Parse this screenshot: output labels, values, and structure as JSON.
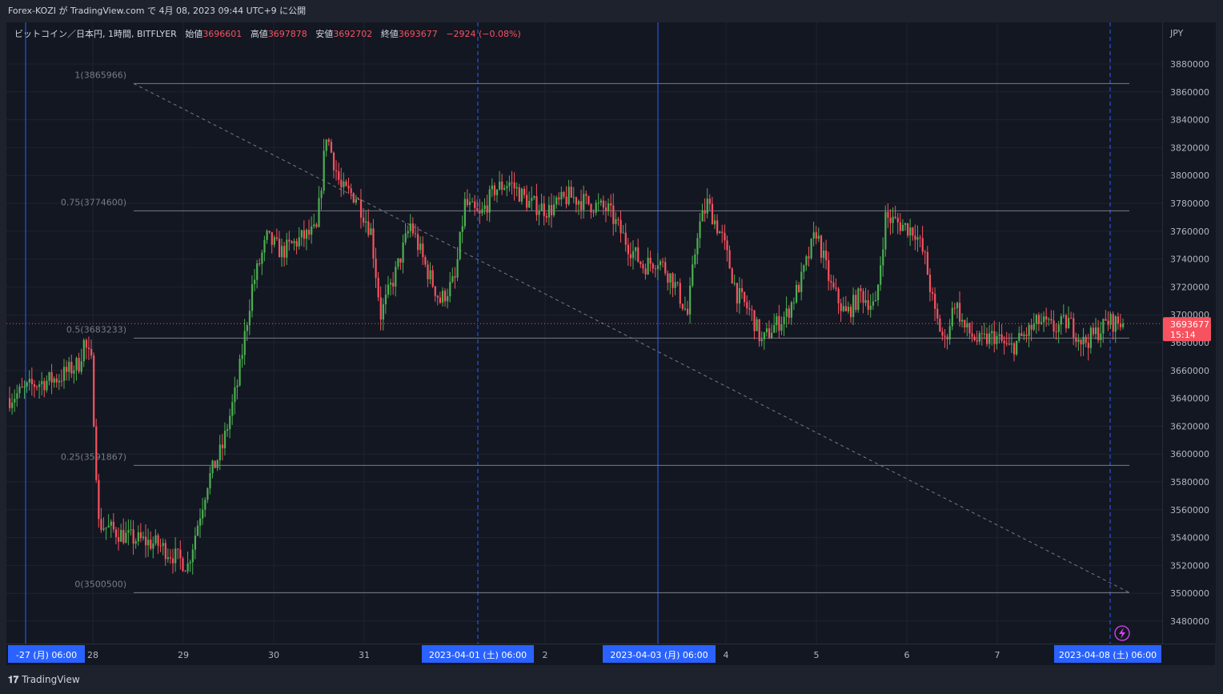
{
  "header": {
    "publish_text": "Forex-KOZI が TradingView.com で 4月 08, 2023 09:44 UTC+9 に公開"
  },
  "legend": {
    "symbol": "ビットコイン／日本円, 1時間, BITFLYER",
    "open_label": "始値",
    "open_value": "3696601",
    "high_label": "高値",
    "high_value": "3697878",
    "low_label": "安値",
    "low_value": "3692702",
    "close_label": "終値",
    "close_value": "3693677",
    "change": "−2924 (−0.08%)"
  },
  "price_axis": {
    "currency": "JPY",
    "ticks": [
      "3880000",
      "3860000",
      "3840000",
      "3820000",
      "3800000",
      "3780000",
      "3760000",
      "3740000",
      "3720000",
      "3700000",
      "3680000",
      "3660000",
      "3640000",
      "3620000",
      "3600000",
      "3580000",
      "3560000",
      "3540000",
      "3520000",
      "3500000",
      "3480000"
    ],
    "last_price": "3693677",
    "countdown": "15:14"
  },
  "time_axis": {
    "labels": [
      "28",
      "29",
      "30",
      "31",
      "2",
      "4",
      "5",
      "6",
      "7"
    ],
    "highlighted": [
      "-27 (月)   06:00",
      "2023-04-01 (土)   06:00",
      "2023-04-03 (月)   06:00",
      "2023-04-08 (土)   06:00"
    ]
  },
  "fib_levels": [
    {
      "label": "1(3865966)",
      "value": 3865966
    },
    {
      "label": "0.75(3774600)",
      "value": 3774600
    },
    {
      "label": "0.5(3683233)",
      "value": 3683233
    },
    {
      "label": "0.25(3591867)",
      "value": 3591867
    },
    {
      "label": "0(3500500)",
      "value": 3500500
    }
  ],
  "footer": {
    "brand": "TradingView"
  },
  "colors": {
    "up": "#26a69a",
    "up_candle": "#4caf50",
    "down": "#f7525f",
    "background": "#131722",
    "grid": "#2a2e39",
    "highlight": "#2962ff"
  },
  "chart_data": {
    "type": "candlestick",
    "title": "ビットコイン／日本円, 1時間, BITFLYER",
    "ylabel": "JPY",
    "ylim": [
      3470000,
      3890000
    ],
    "fibonacci_retracement": {
      "from": 3865966,
      "to": 3500500
    },
    "price_path_anchors": [
      {
        "t": 0,
        "v": 3640000
      },
      {
        "t": 10,
        "v": 3650000
      },
      {
        "t": 20,
        "v": 3655000
      },
      {
        "t": 28,
        "v": 3665000
      },
      {
        "t": 30,
        "v": 3680000
      },
      {
        "t": 33,
        "v": 3665000
      },
      {
        "t": 36,
        "v": 3550000
      },
      {
        "t": 48,
        "v": 3540000
      },
      {
        "t": 60,
        "v": 3535000
      },
      {
        "t": 72,
        "v": 3520000
      },
      {
        "t": 80,
        "v": 3580000
      },
      {
        "t": 86,
        "v": 3605000
      },
      {
        "t": 92,
        "v": 3650000
      },
      {
        "t": 98,
        "v": 3720000
      },
      {
        "t": 104,
        "v": 3755000
      },
      {
        "t": 110,
        "v": 3745000
      },
      {
        "t": 118,
        "v": 3755000
      },
      {
        "t": 124,
        "v": 3760000
      },
      {
        "t": 128,
        "v": 3830000
      },
      {
        "t": 134,
        "v": 3790000
      },
      {
        "t": 140,
        "v": 3785000
      },
      {
        "t": 146,
        "v": 3760000
      },
      {
        "t": 150,
        "v": 3700000
      },
      {
        "t": 156,
        "v": 3730000
      },
      {
        "t": 162,
        "v": 3765000
      },
      {
        "t": 168,
        "v": 3735000
      },
      {
        "t": 174,
        "v": 3710000
      },
      {
        "t": 180,
        "v": 3725000
      },
      {
        "t": 184,
        "v": 3780000
      },
      {
        "t": 190,
        "v": 3770000
      },
      {
        "t": 196,
        "v": 3790000
      },
      {
        "t": 202,
        "v": 3795000
      },
      {
        "t": 210,
        "v": 3780000
      },
      {
        "t": 218,
        "v": 3775000
      },
      {
        "t": 226,
        "v": 3785000
      },
      {
        "t": 234,
        "v": 3780000
      },
      {
        "t": 242,
        "v": 3775000
      },
      {
        "t": 250,
        "v": 3750000
      },
      {
        "t": 256,
        "v": 3735000
      },
      {
        "t": 262,
        "v": 3740000
      },
      {
        "t": 268,
        "v": 3725000
      },
      {
        "t": 274,
        "v": 3700000
      },
      {
        "t": 278,
        "v": 3760000
      },
      {
        "t": 282,
        "v": 3780000
      },
      {
        "t": 288,
        "v": 3755000
      },
      {
        "t": 294,
        "v": 3715000
      },
      {
        "t": 300,
        "v": 3700000
      },
      {
        "t": 304,
        "v": 3680000
      },
      {
        "t": 308,
        "v": 3690000
      },
      {
        "t": 314,
        "v": 3700000
      },
      {
        "t": 320,
        "v": 3725000
      },
      {
        "t": 326,
        "v": 3760000
      },
      {
        "t": 332,
        "v": 3720000
      },
      {
        "t": 338,
        "v": 3700000
      },
      {
        "t": 344,
        "v": 3715000
      },
      {
        "t": 350,
        "v": 3705000
      },
      {
        "t": 354,
        "v": 3770000
      },
      {
        "t": 360,
        "v": 3765000
      },
      {
        "t": 366,
        "v": 3760000
      },
      {
        "t": 370,
        "v": 3740000
      },
      {
        "t": 374,
        "v": 3700000
      },
      {
        "t": 378,
        "v": 3680000
      },
      {
        "t": 382,
        "v": 3710000
      },
      {
        "t": 386,
        "v": 3690000
      },
      {
        "t": 392,
        "v": 3680000
      },
      {
        "t": 398,
        "v": 3685000
      },
      {
        "t": 404,
        "v": 3675000
      },
      {
        "t": 410,
        "v": 3685000
      },
      {
        "t": 416,
        "v": 3695000
      },
      {
        "t": 422,
        "v": 3690000
      },
      {
        "t": 428,
        "v": 3695000
      },
      {
        "t": 434,
        "v": 3680000
      },
      {
        "t": 438,
        "v": 3685000
      },
      {
        "t": 444,
        "v": 3695000
      },
      {
        "t": 450,
        "v": 3693677
      }
    ]
  }
}
